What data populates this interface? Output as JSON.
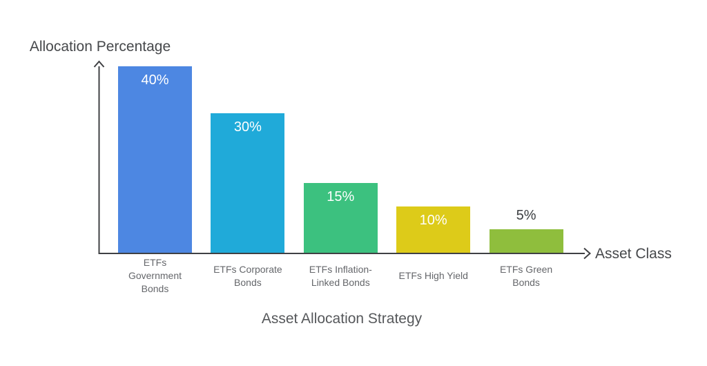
{
  "chart_data": {
    "type": "bar",
    "title": "Asset Allocation Strategy",
    "xlabel": "Asset Class",
    "ylabel": "Allocation Percentage",
    "categories": [
      "ETFs Government Bonds",
      "ETFs Corporate Bonds",
      "ETFs Inflation-Linked Bonds",
      "ETFs High Yield",
      "ETFs Green Bonds"
    ],
    "category_label_lines": [
      [
        "ETFs",
        "Government",
        "Bonds"
      ],
      [
        "ETFs Corporate",
        "Bonds"
      ],
      [
        "ETFs Inflation-",
        "Linked Bonds"
      ],
      [
        "ETFs High Yield"
      ],
      [
        "ETFs Green",
        "Bonds"
      ]
    ],
    "values": [
      40,
      30,
      15,
      10,
      5
    ],
    "value_labels": [
      "40%",
      "30%",
      "15%",
      "10%",
      "5%"
    ],
    "value_label_inside": [
      true,
      true,
      true,
      true,
      false
    ],
    "bar_colors": [
      "#4d87e2",
      "#20aad9",
      "#3cc17f",
      "#ddcb19",
      "#8fbe3d"
    ],
    "ylim": [
      0,
      42
    ],
    "grid": false,
    "legend": null,
    "axis_color": "#3f4043"
  },
  "colors": {
    "background": "#ffffff",
    "title_text": "#56585b",
    "axis_title_text": "#46484b",
    "category_text": "#64666a",
    "value_label_inside": "#ffffff",
    "value_label_outside": "#3b3e41"
  }
}
